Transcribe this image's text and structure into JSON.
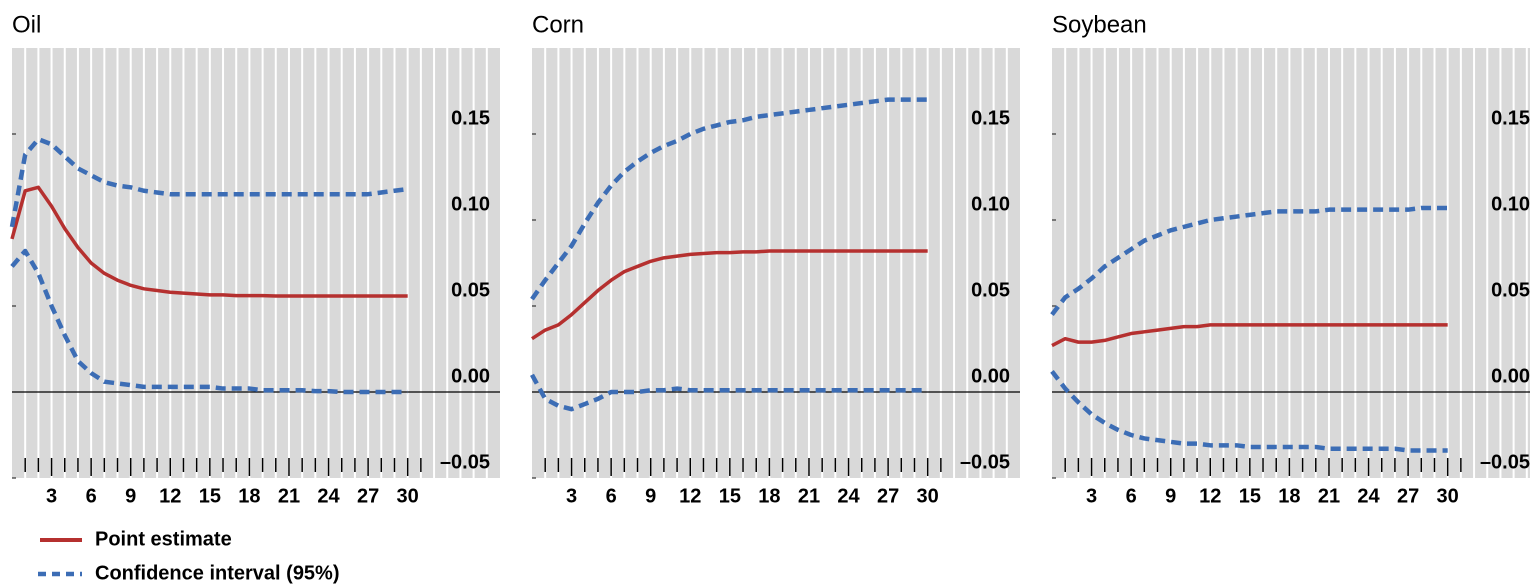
{
  "chart_data": [
    {
      "type": "line",
      "title": "Oil",
      "x": [
        0,
        1,
        2,
        3,
        4,
        5,
        6,
        7,
        8,
        9,
        10,
        11,
        12,
        13,
        14,
        15,
        16,
        17,
        18,
        19,
        20,
        21,
        22,
        23,
        24,
        25,
        26,
        27,
        28,
        29,
        30
      ],
      "series": [
        {
          "name": "Point estimate",
          "color": "#b5302f",
          "style": "solid",
          "values": [
            0.089,
            0.117,
            0.119,
            0.108,
            0.095,
            0.084,
            0.075,
            0.069,
            0.065,
            0.062,
            0.06,
            0.059,
            0.058,
            0.0575,
            0.057,
            0.0565,
            0.0565,
            0.056,
            0.056,
            0.056,
            0.0558,
            0.0558,
            0.0558,
            0.0558,
            0.0558,
            0.0558,
            0.0558,
            0.0558,
            0.0558,
            0.0558,
            0.0558
          ]
        },
        {
          "name": "Confidence interval (95%)",
          "color": "#3c6db5",
          "style": "dashed",
          "values": [
            0.096,
            0.138,
            0.147,
            0.144,
            0.137,
            0.13,
            0.126,
            0.122,
            0.12,
            0.119,
            0.117,
            0.116,
            0.115,
            0.115,
            0.115,
            0.115,
            0.115,
            0.115,
            0.115,
            0.115,
            0.115,
            0.115,
            0.115,
            0.115,
            0.115,
            0.115,
            0.115,
            0.115,
            0.116,
            0.117,
            0.118
          ]
        },
        {
          "color": "#3c6db5",
          "style": "dashed",
          "values": [
            0.073,
            0.082,
            0.069,
            0.05,
            0.033,
            0.018,
            0.011,
            0.006,
            0.005,
            0.004,
            0.003,
            0.003,
            0.003,
            0.003,
            0.003,
            0.003,
            0.002,
            0.002,
            0.002,
            0.001,
            0.001,
            0.001,
            0.001,
            0.0005,
            0.0005,
            0,
            0,
            0,
            0,
            0,
            0
          ]
        }
      ],
      "xlim": [
        0,
        37
      ],
      "xticks": [
        3,
        6,
        9,
        12,
        15,
        18,
        21,
        24,
        27,
        30
      ],
      "ylim": [
        -0.05,
        0.2
      ],
      "yticks": [
        {
          "value": -0.05,
          "label": "–0.05"
        },
        {
          "value": 0,
          "label": "0.00"
        },
        {
          "value": 0.05,
          "label": "0.05"
        },
        {
          "value": 0.1,
          "label": "0.10"
        },
        {
          "value": 0.15,
          "label": "0.15"
        }
      ]
    },
    {
      "type": "line",
      "title": "Corn",
      "x": [
        0,
        1,
        2,
        3,
        4,
        5,
        6,
        7,
        8,
        9,
        10,
        11,
        12,
        13,
        14,
        15,
        16,
        17,
        18,
        19,
        20,
        21,
        22,
        23,
        24,
        25,
        26,
        27,
        28,
        29,
        30
      ],
      "series": [
        {
          "name": "Point estimate",
          "color": "#b5302f",
          "style": "solid",
          "values": [
            0.031,
            0.036,
            0.039,
            0.045,
            0.052,
            0.059,
            0.065,
            0.07,
            0.073,
            0.076,
            0.078,
            0.079,
            0.08,
            0.0805,
            0.081,
            0.081,
            0.0815,
            0.0815,
            0.082,
            0.082,
            0.082,
            0.082,
            0.082,
            0.082,
            0.082,
            0.082,
            0.082,
            0.082,
            0.082,
            0.082,
            0.082
          ]
        },
        {
          "name": "Confidence interval (95%)",
          "color": "#3c6db5",
          "style": "dashed",
          "values": [
            0.054,
            0.065,
            0.075,
            0.085,
            0.098,
            0.11,
            0.12,
            0.128,
            0.134,
            0.139,
            0.143,
            0.146,
            0.15,
            0.153,
            0.155,
            0.157,
            0.158,
            0.16,
            0.161,
            0.162,
            0.163,
            0.164,
            0.165,
            0.166,
            0.167,
            0.168,
            0.169,
            0.17,
            0.17,
            0.17,
            0.17
          ]
        },
        {
          "color": "#3c6db5",
          "style": "dashed",
          "values": [
            0.01,
            -0.004,
            -0.008,
            -0.01,
            -0.007,
            -0.004,
            0,
            0,
            0,
            0.001,
            0.001,
            0.002,
            0.001,
            0.001,
            0.001,
            0.001,
            0.001,
            0.001,
            0.001,
            0.001,
            0.001,
            0.001,
            0.001,
            0.001,
            0.001,
            0.001,
            0.001,
            0.001,
            0.001,
            0.001,
            0.001
          ]
        }
      ],
      "xlim": [
        0,
        37
      ],
      "xticks": [
        3,
        6,
        9,
        12,
        15,
        18,
        21,
        24,
        27,
        30
      ],
      "ylim": [
        -0.05,
        0.2
      ],
      "yticks": [
        {
          "value": -0.05,
          "label": "–0.05"
        },
        {
          "value": 0,
          "label": "0.00"
        },
        {
          "value": 0.05,
          "label": "0.05"
        },
        {
          "value": 0.1,
          "label": "0.10"
        },
        {
          "value": 0.15,
          "label": "0.15"
        }
      ]
    },
    {
      "type": "line",
      "title": "Soybean",
      "x": [
        0,
        1,
        2,
        3,
        4,
        5,
        6,
        7,
        8,
        9,
        10,
        11,
        12,
        13,
        14,
        15,
        16,
        17,
        18,
        19,
        20,
        21,
        22,
        23,
        24,
        25,
        26,
        27,
        28,
        29,
        30
      ],
      "series": [
        {
          "name": "Point estimate",
          "color": "#b5302f",
          "style": "solid",
          "values": [
            0.027,
            0.031,
            0.029,
            0.029,
            0.03,
            0.032,
            0.034,
            0.035,
            0.036,
            0.037,
            0.038,
            0.038,
            0.039,
            0.039,
            0.039,
            0.039,
            0.039,
            0.039,
            0.039,
            0.039,
            0.039,
            0.039,
            0.039,
            0.039,
            0.039,
            0.039,
            0.039,
            0.039,
            0.039,
            0.039,
            0.039
          ]
        },
        {
          "name": "Confidence interval (95%)",
          "color": "#3c6db5",
          "style": "dashed",
          "values": [
            0.045,
            0.055,
            0.06,
            0.066,
            0.073,
            0.078,
            0.083,
            0.088,
            0.091,
            0.094,
            0.096,
            0.098,
            0.1,
            0.101,
            0.102,
            0.103,
            0.104,
            0.105,
            0.105,
            0.105,
            0.105,
            0.106,
            0.106,
            0.106,
            0.106,
            0.106,
            0.106,
            0.106,
            0.107,
            0.107,
            0.107
          ]
        },
        {
          "color": "#3c6db5",
          "style": "dashed",
          "values": [
            0.012,
            0.002,
            -0.006,
            -0.013,
            -0.018,
            -0.022,
            -0.025,
            -0.027,
            -0.028,
            -0.029,
            -0.03,
            -0.03,
            -0.031,
            -0.031,
            -0.031,
            -0.032,
            -0.032,
            -0.032,
            -0.032,
            -0.032,
            -0.032,
            -0.033,
            -0.033,
            -0.033,
            -0.033,
            -0.033,
            -0.033,
            -0.034,
            -0.034,
            -0.034,
            -0.034
          ]
        }
      ],
      "xlim": [
        0,
        37
      ],
      "xticks": [
        3,
        6,
        9,
        12,
        15,
        18,
        21,
        24,
        27,
        30
      ],
      "ylim": [
        -0.05,
        0.2
      ],
      "yticks": [
        {
          "value": -0.05,
          "label": "–0.05"
        },
        {
          "value": 0,
          "label": "0.00"
        },
        {
          "value": 0.05,
          "label": "0.05"
        },
        {
          "value": 0.1,
          "label": "0.10"
        },
        {
          "value": 0.15,
          "label": "0.15"
        }
      ]
    }
  ]
}
